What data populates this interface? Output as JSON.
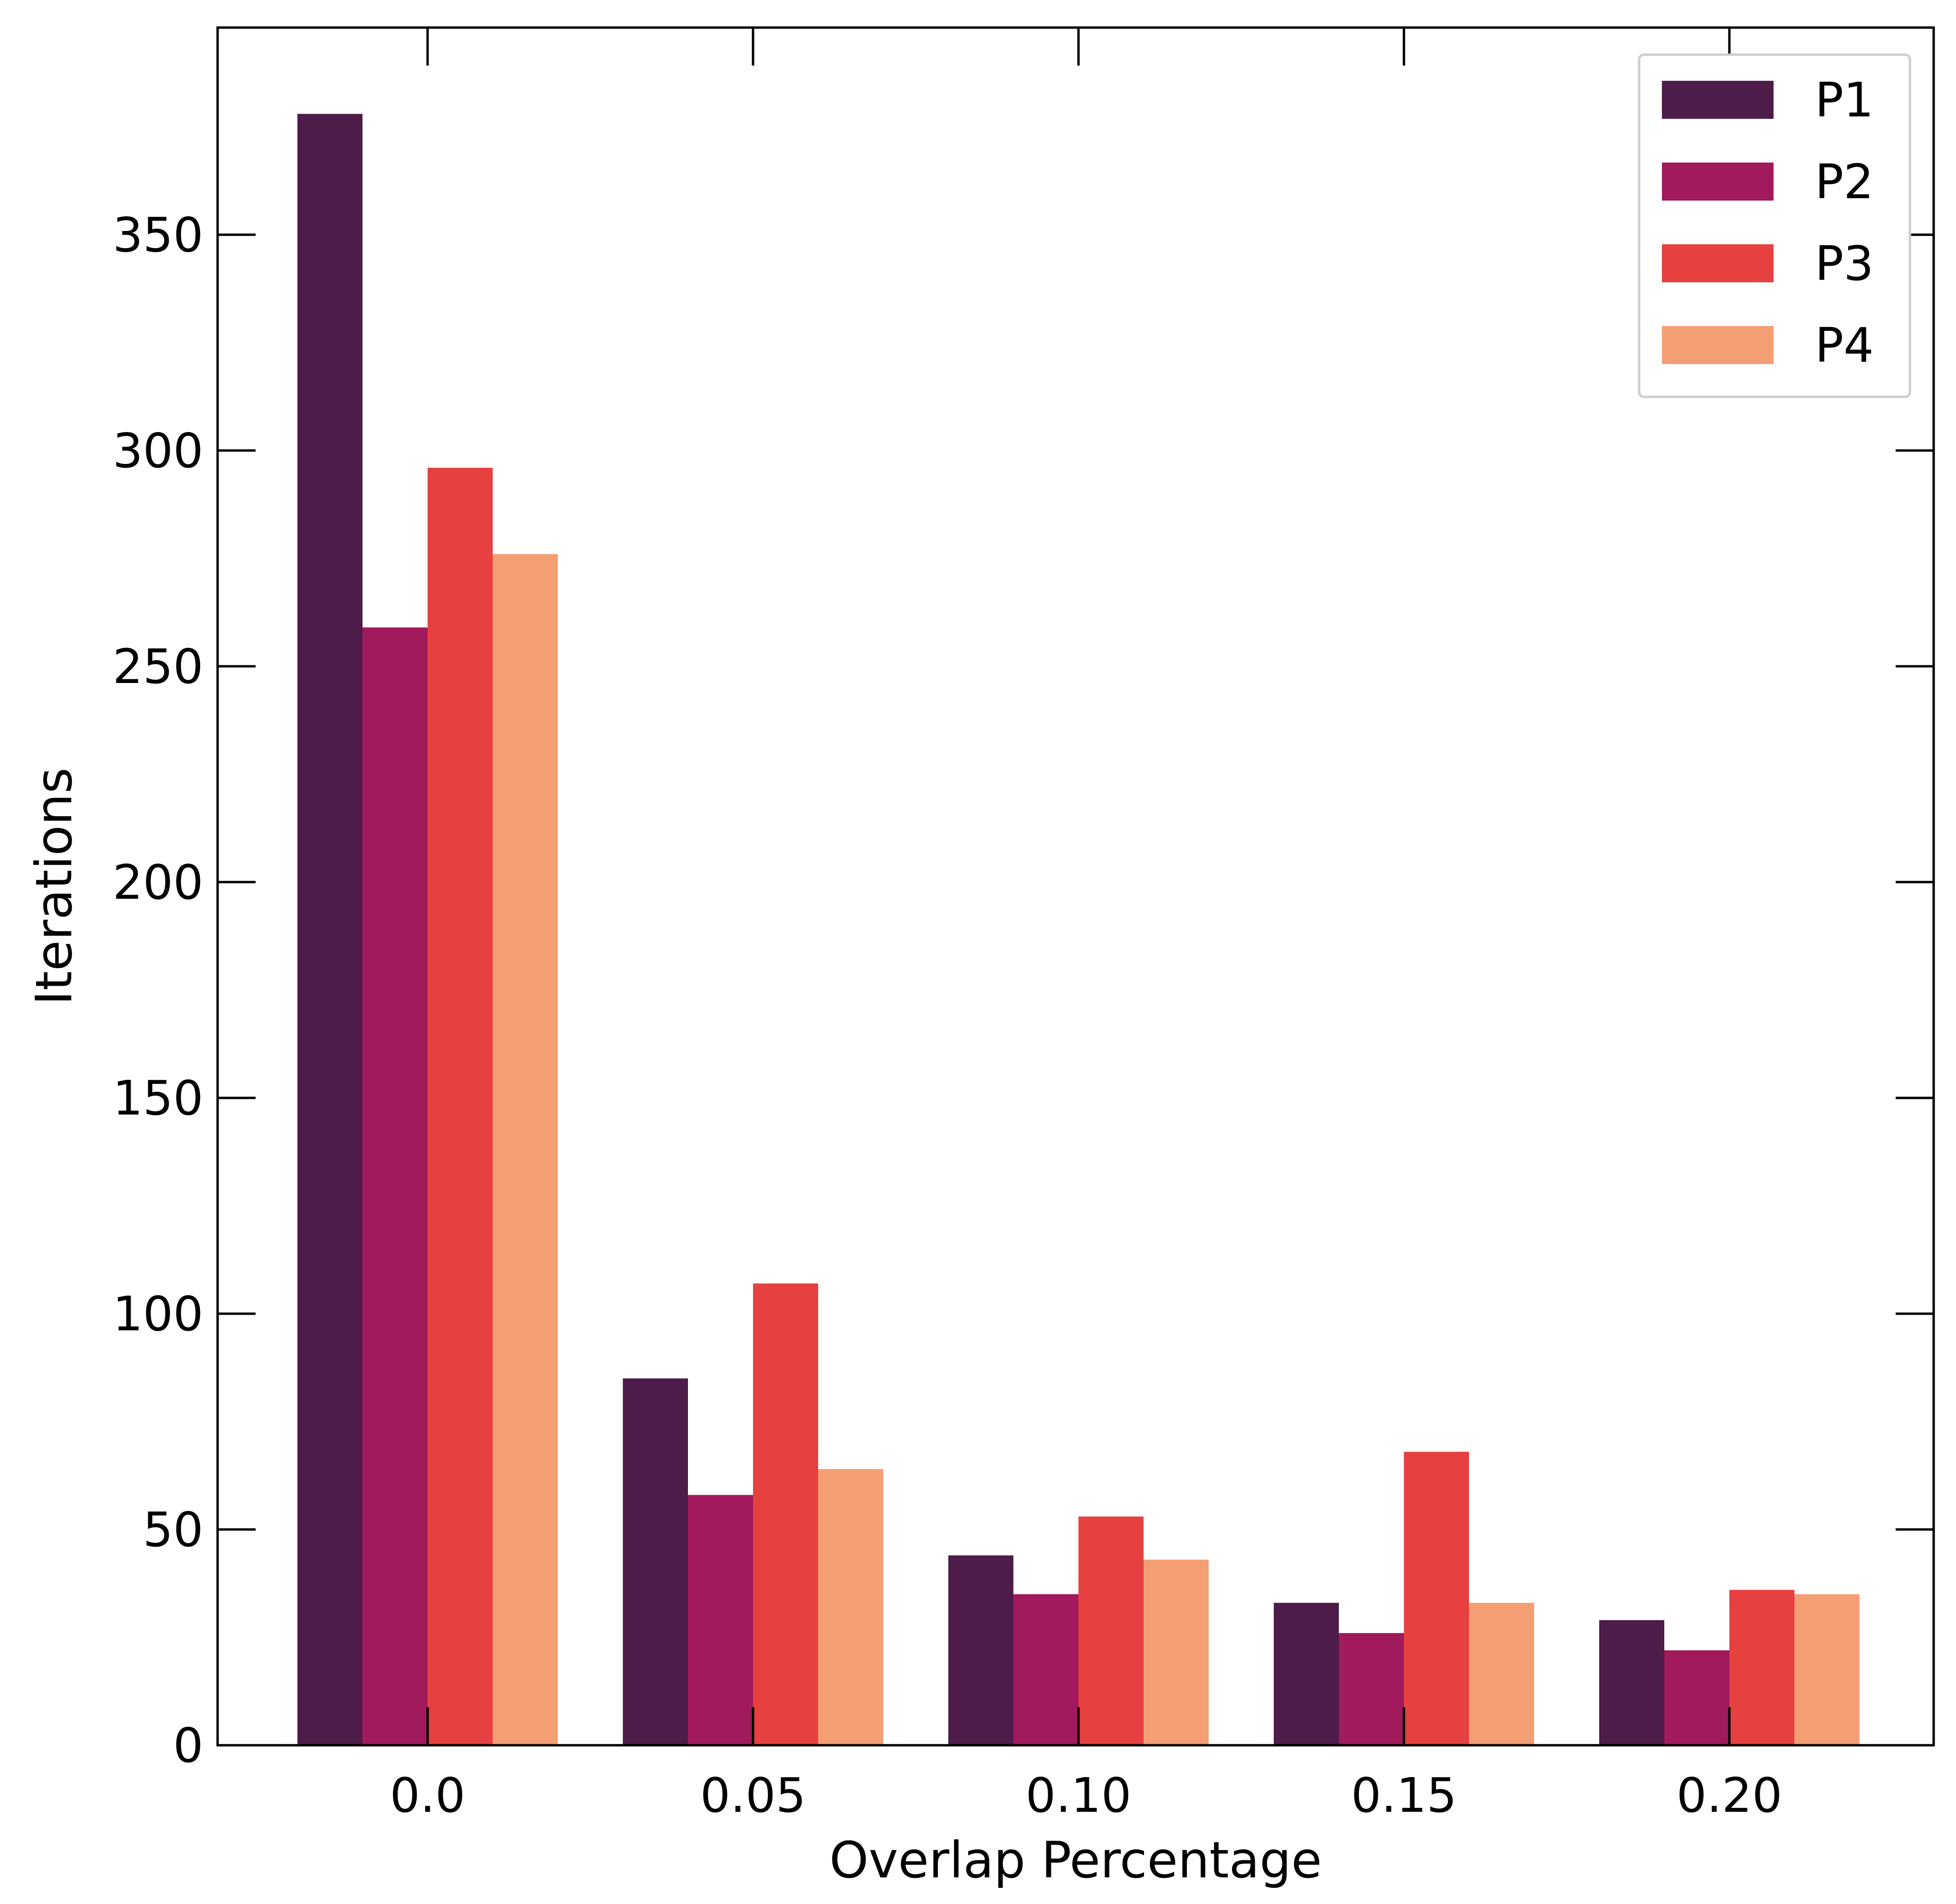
{
  "chart_data": {
    "type": "bar",
    "title": "",
    "xlabel": "Overlap Percentage",
    "ylabel": "Iterations",
    "categories": [
      "0.0",
      "0.05",
      "0.10",
      "0.15",
      "0.20"
    ],
    "y_ticks": [
      "0",
      "50",
      "100",
      "150",
      "200",
      "250",
      "300",
      "350"
    ],
    "ylim": [
      0,
      398
    ],
    "grid": false,
    "legend_position": "top-right",
    "series": [
      {
        "name": "P1",
        "color": "#4d1c48",
        "values": [
          378,
          85,
          44,
          33,
          29
        ]
      },
      {
        "name": "P2",
        "color": "#a11a5b",
        "values": [
          259,
          58,
          35,
          26,
          22
        ]
      },
      {
        "name": "P3",
        "color": "#e64040",
        "values": [
          296,
          107,
          53,
          68,
          36
        ]
      },
      {
        "name": "P4",
        "color": "#f49e74",
        "values": [
          276,
          64,
          43,
          33,
          35
        ]
      }
    ]
  }
}
